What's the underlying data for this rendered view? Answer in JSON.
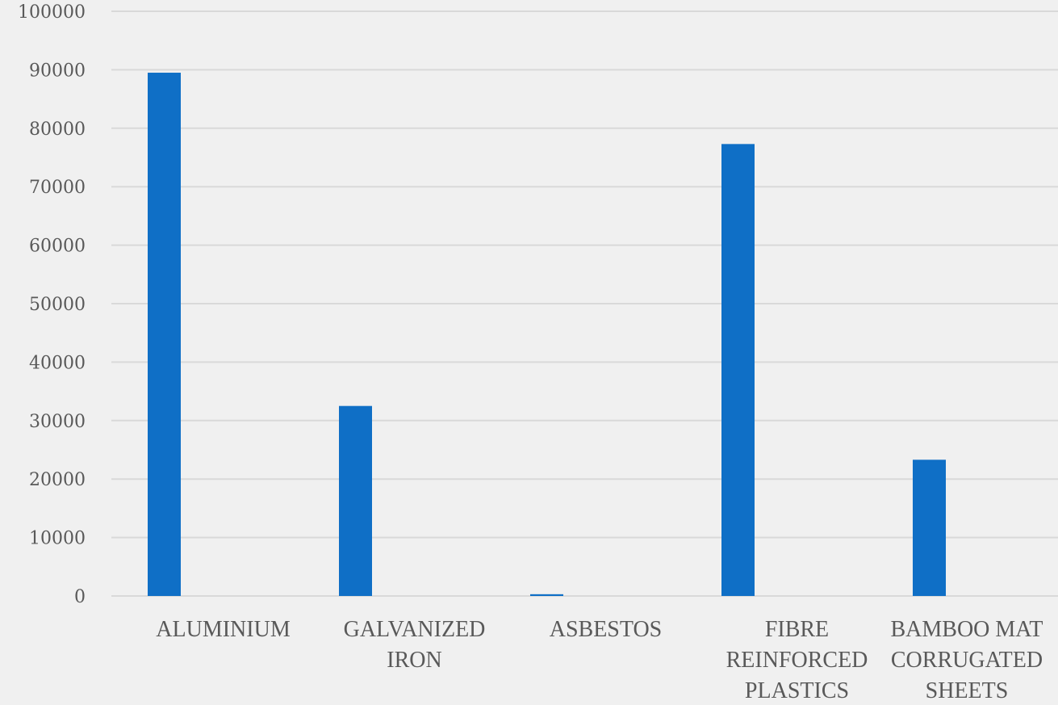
{
  "chart_data": {
    "type": "bar",
    "title": "",
    "xlabel": "",
    "ylabel": "",
    "categories": [
      [
        "ALUMINIUM"
      ],
      [
        "GALVANIZED",
        "IRON"
      ],
      [
        "ASBESTOS"
      ],
      [
        "FIBRE",
        "REINFORCED",
        "PLASTICS"
      ],
      [
        "BAMBOO MAT",
        "CORRUGATED",
        "SHEETS"
      ]
    ],
    "values": [
      89500,
      32500,
      300,
      77300,
      23300
    ],
    "ylim": [
      0,
      100000
    ],
    "yticks": [
      0,
      10000,
      20000,
      30000,
      40000,
      50000,
      60000,
      70000,
      80000,
      90000,
      100000
    ],
    "grid": true,
    "legend": "none",
    "colors": {
      "bar": "#0f6fc6",
      "background": "#f0f0f0",
      "grid": "#d9d9d9",
      "text": "#595959"
    }
  }
}
